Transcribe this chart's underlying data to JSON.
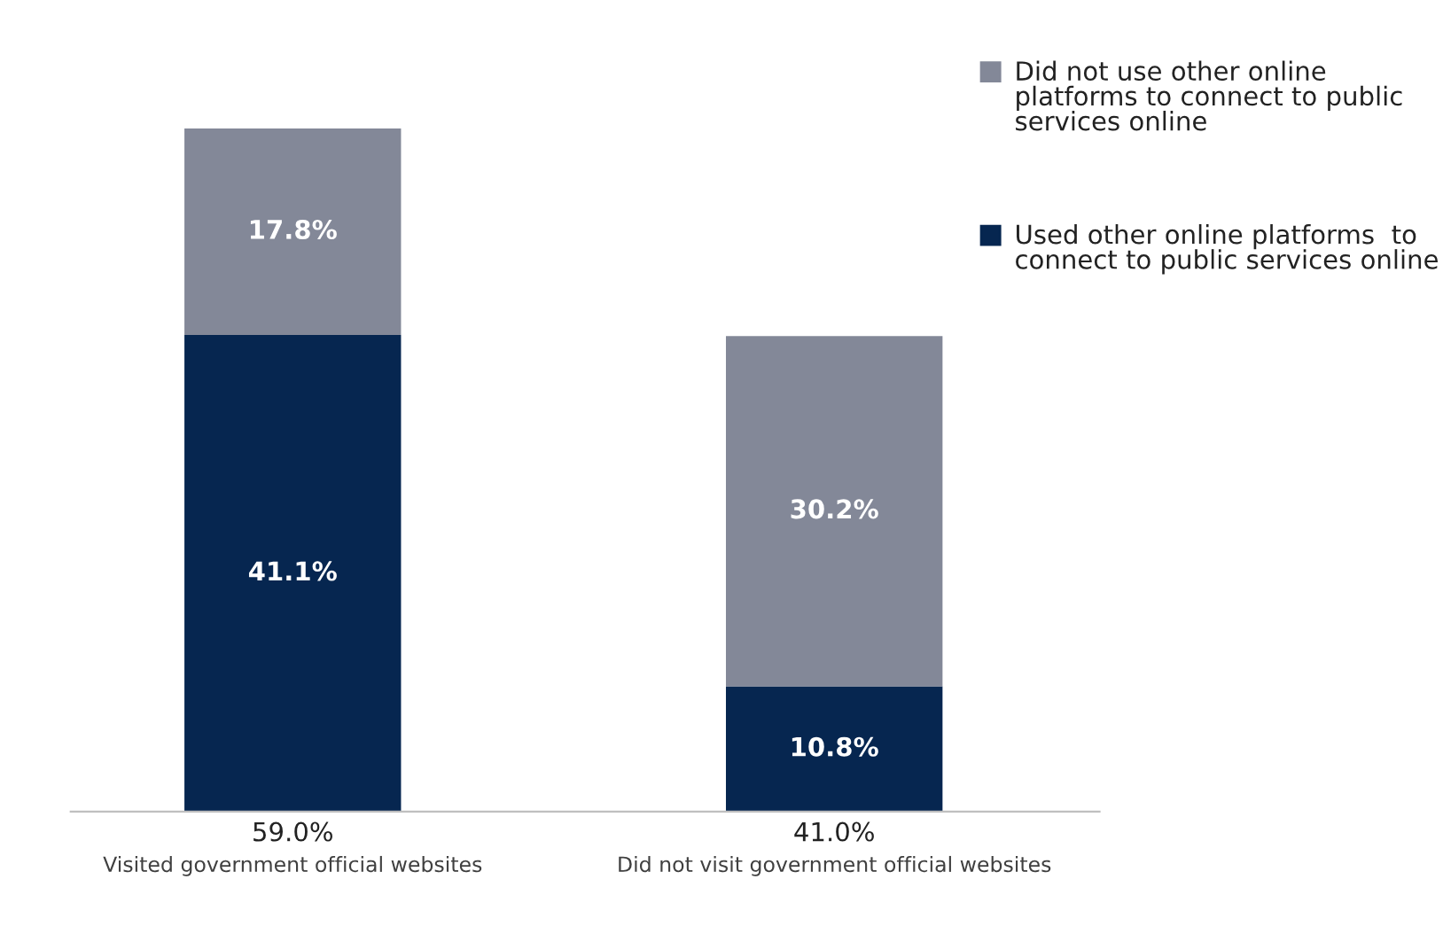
{
  "chart_data": {
    "type": "bar",
    "stacked": true,
    "categories": [
      "Visited government official websites",
      "Did not visit government official websites"
    ],
    "series": [
      {
        "name": "Used other online platforms  to connect to public services online",
        "color": "#062650",
        "values": [
          41.1,
          10.8
        ],
        "value_labels": [
          "41.1%",
          "10.8%"
        ]
      },
      {
        "name": "Did not use other online platforms to connect to public services online",
        "color": "#838898",
        "values": [
          17.8,
          30.2
        ],
        "value_labels": [
          "17.8%",
          "30.2%"
        ]
      }
    ],
    "totals": [
      "59.0%",
      "41.0%"
    ],
    "tick_labels": "x",
    "grid": false,
    "legend": "top right"
  }
}
